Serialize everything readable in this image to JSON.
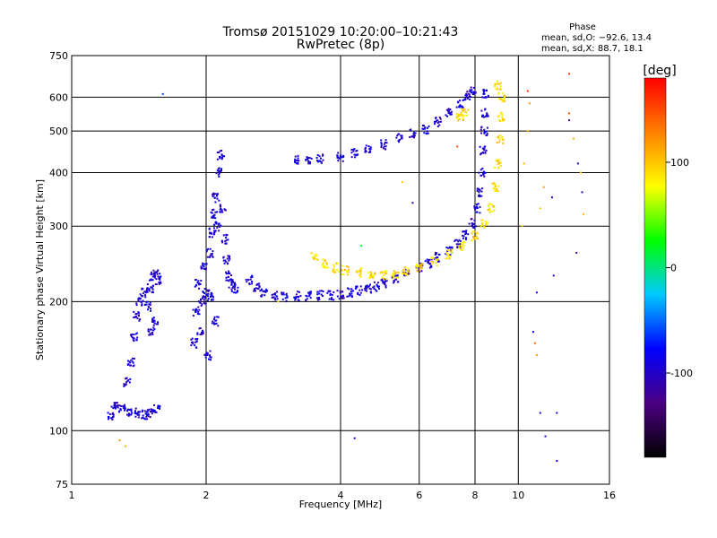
{
  "chart_data": {
    "type": "scatter",
    "title": "Tromsø 20151029 10:20:00–10:21:43",
    "subtitle": "RwPretec (8p)",
    "xlabel": "Frequency [MHz]",
    "ylabel": "Stationary phase Virtual Height [km]",
    "x_scale": "log2",
    "y_scale": "log",
    "xlim": [
      1,
      16
    ],
    "ylim": [
      75,
      750
    ],
    "x_ticks": [
      1,
      2,
      4,
      6,
      8,
      10,
      16
    ],
    "y_ticks": [
      75,
      100,
      200,
      300,
      400,
      500,
      600,
      750
    ],
    "grid": true,
    "stats": {
      "heading": "Phase",
      "o_line": "mean, sd,O: −92.6, 13.4",
      "x_line": "mean, sd,X: 88.7, 18.1"
    },
    "colorbar": {
      "label": "[deg]",
      "range": [
        -180,
        180
      ],
      "ticks": [
        100,
        0,
        -100
      ],
      "stops": [
        "#000000",
        "#4b0082",
        "#0000ff",
        "#00c8ff",
        "#00ff00",
        "#ffff00",
        "#ff8000",
        "#ff0000"
      ]
    },
    "series": [
      {
        "role": "O-mode traces",
        "phase": -95,
        "points": [
          [
            1.22,
            108
          ],
          [
            1.25,
            115
          ],
          [
            1.3,
            112
          ],
          [
            1.35,
            111
          ],
          [
            1.4,
            110
          ],
          [
            1.45,
            109
          ],
          [
            1.5,
            110
          ],
          [
            1.55,
            113
          ],
          [
            1.33,
            130
          ],
          [
            1.36,
            145
          ],
          [
            1.38,
            165
          ],
          [
            1.4,
            185
          ],
          [
            1.42,
            200
          ],
          [
            1.45,
            210
          ],
          [
            1.48,
            195
          ],
          [
            1.5,
            215
          ],
          [
            1.52,
            230
          ],
          [
            1.55,
            232
          ],
          [
            1.57,
            225
          ],
          [
            1.54,
            180
          ],
          [
            1.51,
            170
          ],
          [
            1.88,
            160
          ],
          [
            1.9,
            190
          ],
          [
            1.92,
            220
          ],
          [
            1.94,
            170
          ],
          [
            1.96,
            200
          ],
          [
            1.98,
            240
          ],
          [
            2.0,
            210
          ],
          [
            2.02,
            150
          ],
          [
            2.04,
            260
          ],
          [
            2.06,
            290
          ],
          [
            2.08,
            320
          ],
          [
            2.1,
            350
          ],
          [
            2.12,
            300
          ],
          [
            2.14,
            400
          ],
          [
            2.16,
            440
          ],
          [
            2.18,
            330
          ],
          [
            2.2,
            280
          ],
          [
            2.22,
            250
          ],
          [
            2.25,
            230
          ],
          [
            2.28,
            220
          ],
          [
            2.32,
            215
          ],
          [
            2.1,
            180
          ],
          [
            2.05,
            205
          ],
          [
            2.5,
            225
          ],
          [
            2.6,
            215
          ],
          [
            2.7,
            210
          ],
          [
            2.85,
            207
          ],
          [
            3.0,
            205
          ],
          [
            3.2,
            206
          ],
          [
            3.4,
            206
          ],
          [
            3.6,
            207
          ],
          [
            3.8,
            207
          ],
          [
            4.0,
            208
          ],
          [
            4.2,
            210
          ],
          [
            4.4,
            212
          ],
          [
            4.6,
            214
          ],
          [
            4.8,
            217
          ],
          [
            5.0,
            220
          ],
          [
            5.3,
            226
          ],
          [
            5.6,
            232
          ],
          [
            6.0,
            240
          ],
          [
            6.3,
            246
          ],
          [
            6.6,
            254
          ],
          [
            7.0,
            262
          ],
          [
            7.3,
            272
          ],
          [
            7.6,
            286
          ],
          [
            7.9,
            305
          ],
          [
            8.1,
            330
          ],
          [
            8.2,
            360
          ],
          [
            8.3,
            400
          ],
          [
            8.35,
            450
          ],
          [
            8.4,
            500
          ],
          [
            8.42,
            550
          ],
          [
            8.45,
            610
          ],
          [
            3.2,
            430
          ],
          [
            3.4,
            425
          ],
          [
            3.6,
            430
          ],
          [
            4.0,
            435
          ],
          [
            4.3,
            445
          ],
          [
            4.6,
            455
          ],
          [
            5.0,
            465
          ],
          [
            5.4,
            480
          ],
          [
            5.8,
            492
          ],
          [
            6.2,
            505
          ],
          [
            6.6,
            525
          ],
          [
            7.0,
            550
          ],
          [
            7.4,
            580
          ],
          [
            7.7,
            605
          ],
          [
            7.9,
            620
          ]
        ]
      },
      {
        "role": "X-mode traces",
        "phase": 90,
        "points": [
          [
            3.5,
            255
          ],
          [
            3.7,
            245
          ],
          [
            3.9,
            240
          ],
          [
            4.1,
            237
          ],
          [
            4.4,
            234
          ],
          [
            4.7,
            232
          ],
          [
            5.0,
            231
          ],
          [
            5.3,
            233
          ],
          [
            5.6,
            236
          ],
          [
            6.0,
            240
          ],
          [
            6.5,
            248
          ],
          [
            7.0,
            258
          ],
          [
            7.5,
            270
          ],
          [
            8.0,
            285
          ],
          [
            8.4,
            305
          ],
          [
            8.7,
            330
          ],
          [
            8.9,
            370
          ],
          [
            9.0,
            420
          ],
          [
            9.1,
            480
          ],
          [
            9.15,
            540
          ],
          [
            9.2,
            600
          ],
          [
            9.0,
            640
          ],
          [
            7.4,
            540
          ],
          [
            7.6,
            550
          ]
        ]
      },
      {
        "role": "scattered echoes",
        "points": [
          [
            1.6,
            610,
            -60
          ],
          [
            1.28,
            95,
            120
          ],
          [
            1.32,
            92,
            110
          ],
          [
            2.9,
            200,
            95
          ],
          [
            4.45,
            270,
            20
          ],
          [
            4.3,
            96,
            -90
          ],
          [
            5.5,
            380,
            100
          ],
          [
            5.8,
            340,
            -110
          ],
          [
            7.3,
            460,
            150
          ],
          [
            10.5,
            620,
            160
          ],
          [
            10.6,
            580,
            120
          ],
          [
            10.5,
            500,
            110
          ],
          [
            10.3,
            420,
            105
          ],
          [
            10.2,
            300,
            100
          ],
          [
            10.8,
            170,
            -80
          ],
          [
            10.9,
            160,
            140
          ],
          [
            11.0,
            150,
            120
          ],
          [
            11.2,
            110,
            -100
          ],
          [
            11.5,
            97,
            -110
          ],
          [
            12.0,
            230,
            -90
          ],
          [
            12.2,
            85,
            -95
          ],
          [
            13.0,
            680,
            160
          ],
          [
            13.0,
            550,
            150
          ],
          [
            13.0,
            530,
            -130
          ],
          [
            13.3,
            480,
            110
          ],
          [
            13.6,
            420,
            -100
          ],
          [
            13.8,
            400,
            100
          ],
          [
            13.9,
            360,
            -110
          ],
          [
            14.0,
            320,
            105
          ],
          [
            13.5,
            260,
            -120
          ],
          [
            12.2,
            110,
            -100
          ],
          [
            11.9,
            350,
            -95
          ],
          [
            11.4,
            370,
            120
          ],
          [
            11.2,
            330,
            100
          ],
          [
            11.0,
            210,
            -90
          ]
        ]
      }
    ]
  }
}
